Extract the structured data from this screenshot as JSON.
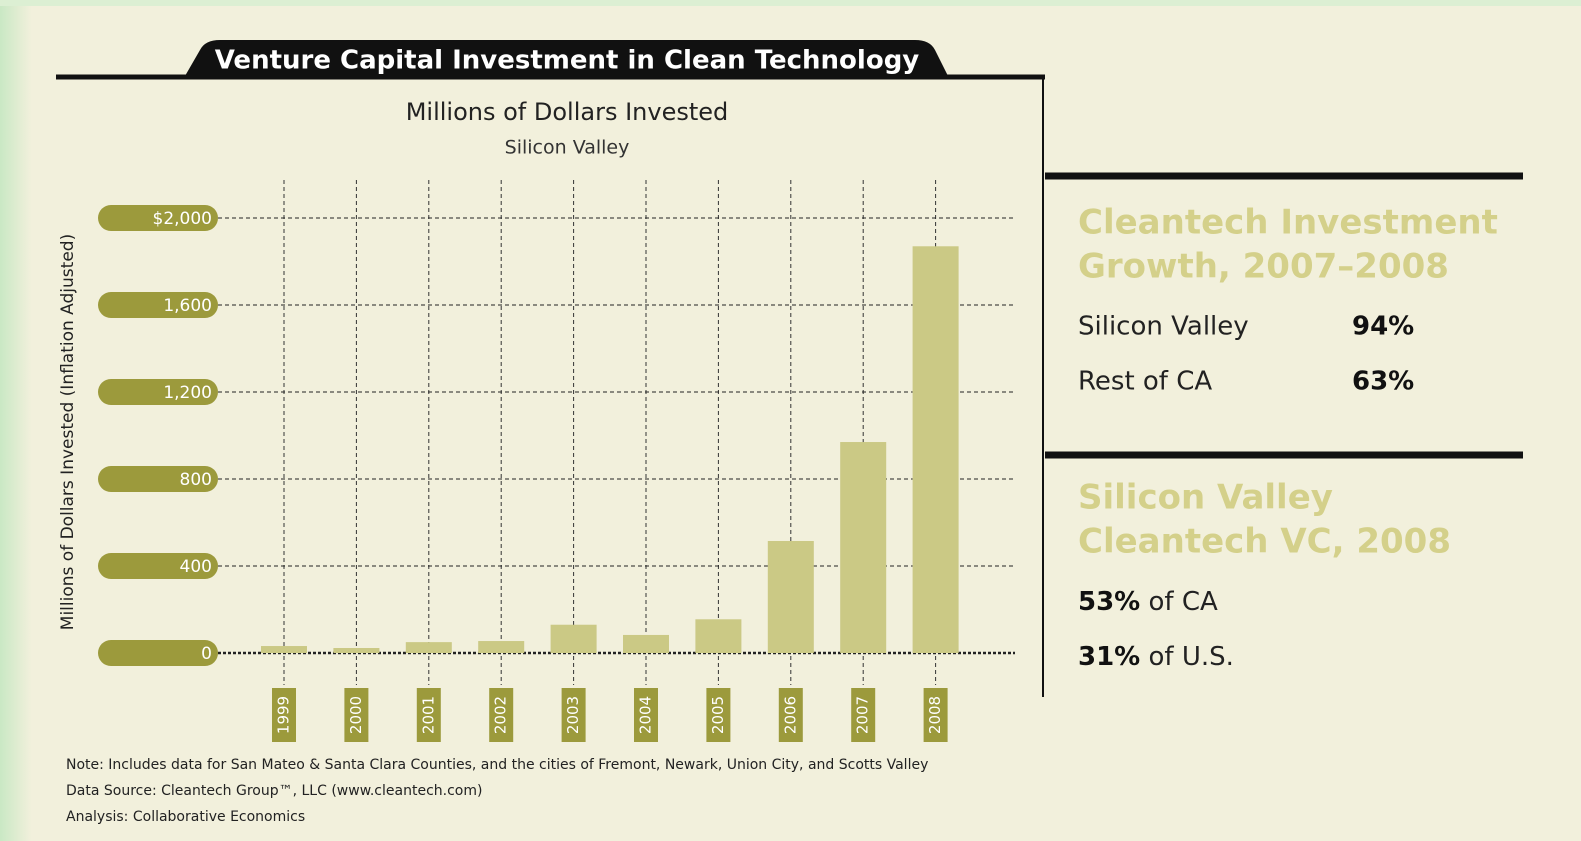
{
  "chart_data": {
    "type": "bar",
    "title": "Venture Capital Investment in Clean Technology",
    "subtitle": "Millions of Dollars Invested",
    "region": "Silicon Valley",
    "y_label": "Millions of Dollars Invested (Inflation Adjusted)",
    "categories": [
      "1999",
      "2000",
      "2001",
      "2002",
      "2003",
      "2004",
      "2005",
      "2006",
      "2007",
      "2008"
    ],
    "values": [
      32,
      23,
      50,
      55,
      130,
      83,
      155,
      515,
      970,
      1870
    ],
    "color": "#cbc985",
    "ylim": [
      0,
      2000
    ],
    "yticks": [
      0,
      400,
      800,
      {
        "value": 1200,
        "label": "1,200"
      },
      {
        "value": 1600,
        "label": "1,600"
      },
      {
        "value": 2000,
        "label": "$2,000"
      }
    ],
    "grid": true,
    "notes": [
      "Note: Includes data for San Mateo & Santa Clara Counties, and the cities of Fremont, Newark, Union City, and Scotts Valley",
      "Data Source: Cleantech Group™, LLC (www.cleantech.com)",
      "Analysis: Collaborative Economics"
    ]
  },
  "side_panel": [
    {
      "title": [
        "Cleantech Investment",
        "Growth, 2007–2008"
      ],
      "rows": [
        {
          "label": "Silicon Valley",
          "value": "94%"
        },
        {
          "label": "Rest of CA",
          "value": "63%"
        }
      ]
    },
    {
      "title": [
        "Silicon Valley",
        "Cleantech VC, 2008"
      ],
      "rows": [
        {
          "value": "53%",
          "label": "of CA"
        },
        {
          "value": "31%",
          "label": "of U.S."
        }
      ]
    }
  ]
}
